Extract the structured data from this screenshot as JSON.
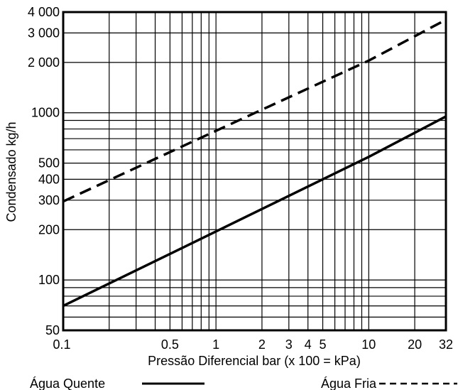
{
  "chart_data": {
    "type": "line",
    "title": "",
    "xlabel": "Pressão Diferencial bar (x 100 = kPa)",
    "ylabel": "Condensado  kg/h",
    "x_scale": "log",
    "y_scale": "log",
    "xlim": [
      0.1,
      32
    ],
    "ylim": [
      50,
      4000
    ],
    "grid": true,
    "x_ticks": [
      {
        "value": 0.1,
        "label": "0.1"
      },
      {
        "value": 0.5,
        "label": "0.5"
      },
      {
        "value": 1,
        "label": "1"
      },
      {
        "value": 2,
        "label": "2"
      },
      {
        "value": 3,
        "label": "3"
      },
      {
        "value": 4,
        "label": "4"
      },
      {
        "value": 5,
        "label": "5"
      },
      {
        "value": 10,
        "label": "10"
      },
      {
        "value": 20,
        "label": "20"
      },
      {
        "value": 32,
        "label": "32"
      }
    ],
    "y_ticks": [
      {
        "value": 50,
        "label": "50"
      },
      {
        "value": 100,
        "label": "100"
      },
      {
        "value": 200,
        "label": "200"
      },
      {
        "value": 300,
        "label": "300"
      },
      {
        "value": 400,
        "label": "400"
      },
      {
        "value": 500,
        "label": "500"
      },
      {
        "value": 1000,
        "label": "1000"
      },
      {
        "value": 2000,
        "label": "2 000"
      },
      {
        "value": 3000,
        "label": "3 000"
      },
      {
        "value": 4000,
        "label": "4 000"
      }
    ],
    "x_minor_gridlines": [
      0.2,
      0.3,
      0.4,
      0.5,
      0.6,
      0.7,
      0.8,
      0.9,
      1,
      2,
      3,
      4,
      5,
      6,
      7,
      8,
      9,
      10,
      20
    ],
    "y_minor_gridlines": [
      60,
      70,
      80,
      90,
      100,
      200,
      300,
      400,
      500,
      600,
      700,
      800,
      900,
      1000,
      2000,
      3000
    ],
    "series": [
      {
        "name": "Água Quente",
        "style": "solid",
        "x": [
          0.1,
          1,
          10,
          32
        ],
        "y": [
          70,
          195,
          545,
          950
        ]
      },
      {
        "name": "Água Fria",
        "style": "dashed",
        "x": [
          0.1,
          1,
          10,
          32
        ],
        "y": [
          295,
          780,
          2050,
          3600
        ]
      }
    ],
    "legend": [
      {
        "label": "Água Quente",
        "style": "solid"
      },
      {
        "label": "Água Fria",
        "style": "dashed"
      }
    ],
    "legend_placement": "bottom"
  }
}
